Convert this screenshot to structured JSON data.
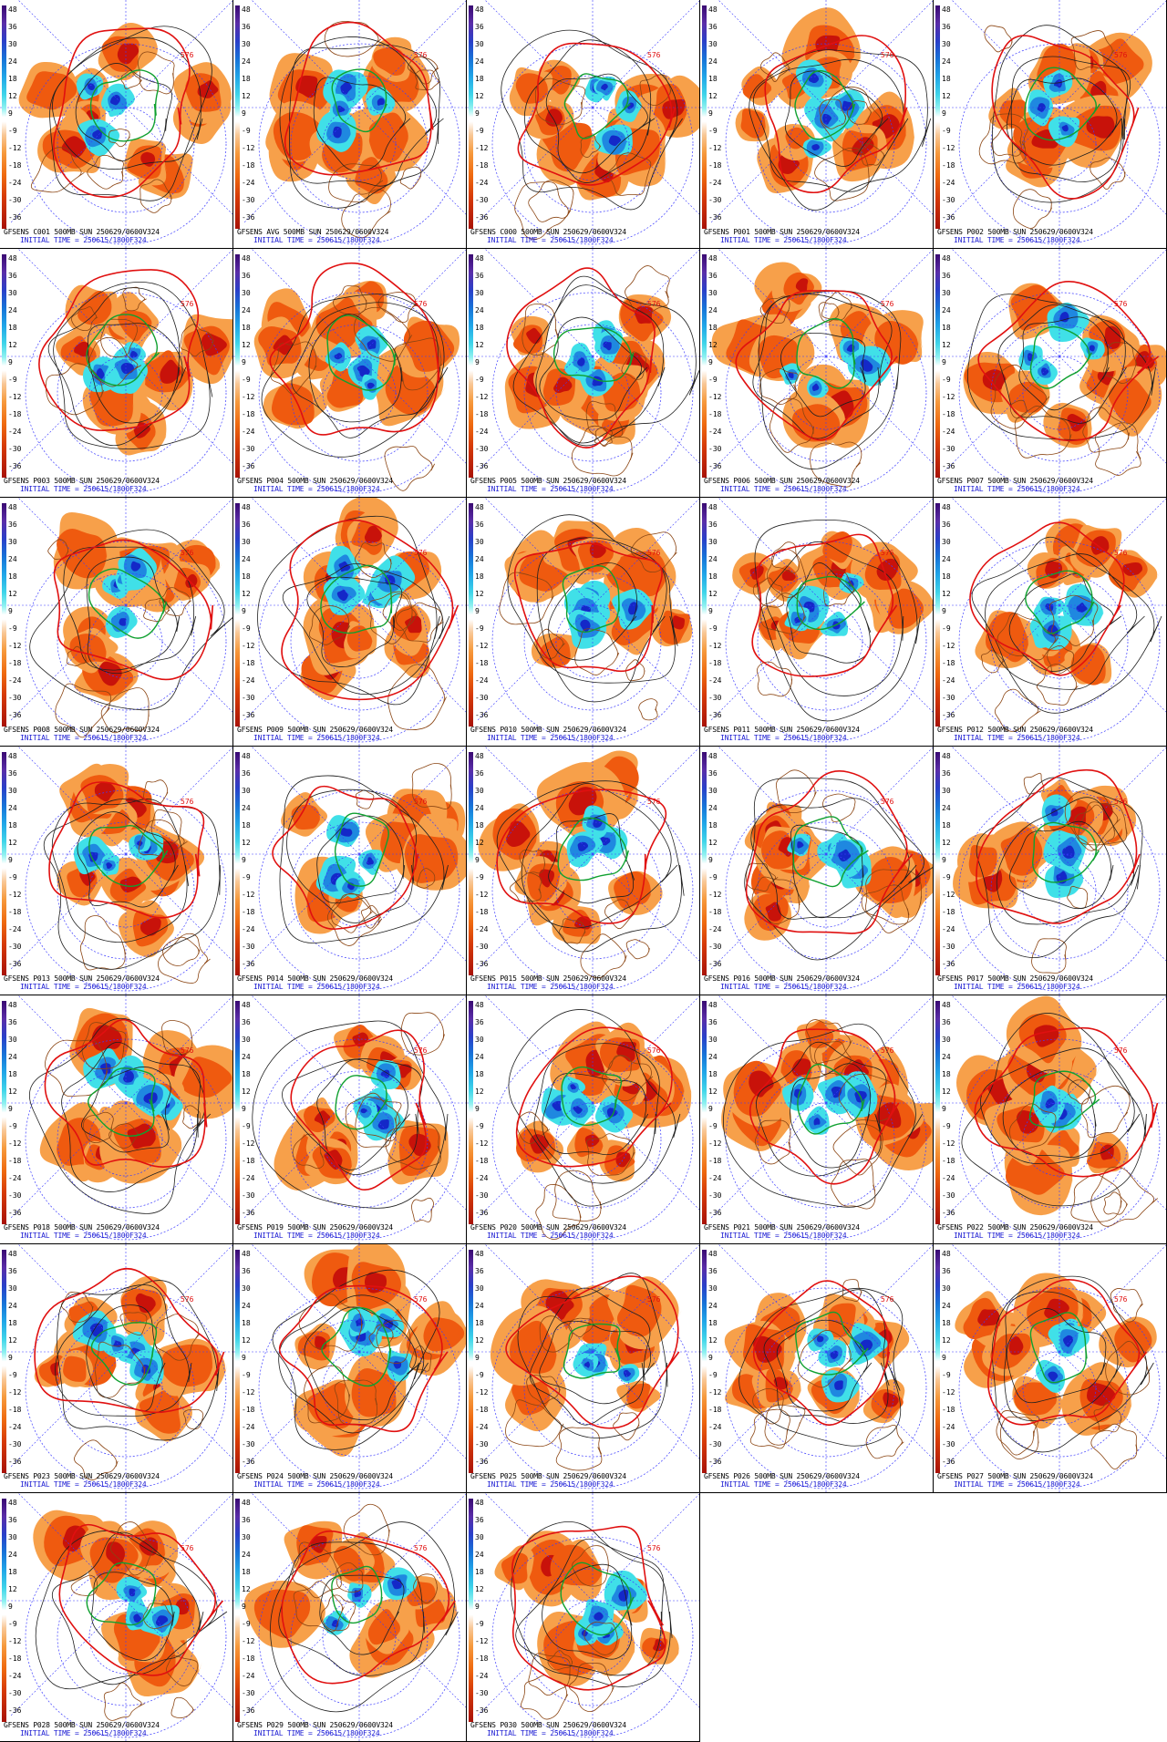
{
  "colorbar": {
    "tick_labels": [
      "48",
      "36",
      "30",
      "24",
      "18",
      "12",
      "9",
      "-9",
      "-12",
      "-18",
      "-24",
      "-30",
      "-36"
    ]
  },
  "initial_time": "INITIAL TIME = 250615/1800F324",
  "panels": [
    {
      "member": "C001",
      "caption": "GFSENS C001 500MB SUN 250629/0600V324"
    },
    {
      "member": "AVG",
      "caption": "GFSENS AVG 500MB SUN 250629/0600V324"
    },
    {
      "member": "C000",
      "caption": "GFSENS C000 500MB SUN 250629/0600V324"
    },
    {
      "member": "P001",
      "caption": "GFSENS P001 500MB SUN 250629/0600V324"
    },
    {
      "member": "P002",
      "caption": "GFSENS P002 500MB SUN 250629/0600V324"
    },
    {
      "member": "P003",
      "caption": "GFSENS P003 500MB SUN 250629/0600V324"
    },
    {
      "member": "P004",
      "caption": "GFSENS P004 500MB SUN 250629/0600V324"
    },
    {
      "member": "P005",
      "caption": "GFSENS P005 500MB SUN 250629/0600V324"
    },
    {
      "member": "P006",
      "caption": "GFSENS P006 500MB SUN 250629/0600V324"
    },
    {
      "member": "P007",
      "caption": "GFSENS P007 500MB SUN 250629/0600V324"
    },
    {
      "member": "P008",
      "caption": "GFSENS P008 500MB SUN 250629/0600V324"
    },
    {
      "member": "P009",
      "caption": "GFSENS P009 500MB SUN 250629/0600V324"
    },
    {
      "member": "P010",
      "caption": "GFSENS P010 500MB SUN 250629/0600V324"
    },
    {
      "member": "P011",
      "caption": "GFSENS P011 500MB SUN 250629/0600V324"
    },
    {
      "member": "P012",
      "caption": "GFSENS P012 500MB SUN 250629/0600V324"
    },
    {
      "member": "P013",
      "caption": "GFSENS P013 500MB SUN 250629/0600V324"
    },
    {
      "member": "P014",
      "caption": "GFSENS P014 500MB SUN 250629/0600V324"
    },
    {
      "member": "P015",
      "caption": "GFSENS P015 500MB SUN 250629/0600V324"
    },
    {
      "member": "P016",
      "caption": "GFSENS P016 500MB SUN 250629/0600V324"
    },
    {
      "member": "P017",
      "caption": "GFSENS P017 500MB SUN 250629/0600V324"
    },
    {
      "member": "P018",
      "caption": "GFSENS P018 500MB SUN 250629/0600V324"
    },
    {
      "member": "P019",
      "caption": "GFSENS P019 500MB SUN 250629/0600V324"
    },
    {
      "member": "P020",
      "caption": "GFSENS P020 500MB SUN 250629/0600V324"
    },
    {
      "member": "P021",
      "caption": "GFSENS P021 500MB SUN 250629/0600V324"
    },
    {
      "member": "P022",
      "caption": "GFSENS P022 500MB SUN 250629/0600V324"
    },
    {
      "member": "P023",
      "caption": "GFSENS P023 500MB SUN 250629/0600V324"
    },
    {
      "member": "P024",
      "caption": "GFSENS P024 500MB SUN 250629/0600V324"
    },
    {
      "member": "P025",
      "caption": "GFSENS P025 500MB SUN 250629/0600V324"
    },
    {
      "member": "P026",
      "caption": "GFSENS P026 500MB SUN 250629/0600V324"
    },
    {
      "member": "P027",
      "caption": "GFSENS P027 500MB SUN 250629/0600V324"
    },
    {
      "member": "P028",
      "caption": "GFSENS P028 500MB SUN 250629/0600V324"
    },
    {
      "member": "P029",
      "caption": "GFSENS P029 500MB SUN 250629/0600V324"
    },
    {
      "member": "P030",
      "caption": "GFSENS P030 500MB SUN 250629/0600V324"
    }
  ],
  "contour_label": "576",
  "colors": {
    "positive_dark": "#c8120a",
    "positive_mid": "#ef5a0f",
    "positive_light": "#f7a04a",
    "negative_light": "#40e0e8",
    "negative_mid": "#1f88e0",
    "negative_dark": "#1428c8",
    "contour_576": "#e01010",
    "contour_green": "#10a030",
    "contour_black": "#202020",
    "coastline": "#8b4513",
    "grid_lines": "#3c3cff",
    "caption_blue": "#1919d2"
  }
}
